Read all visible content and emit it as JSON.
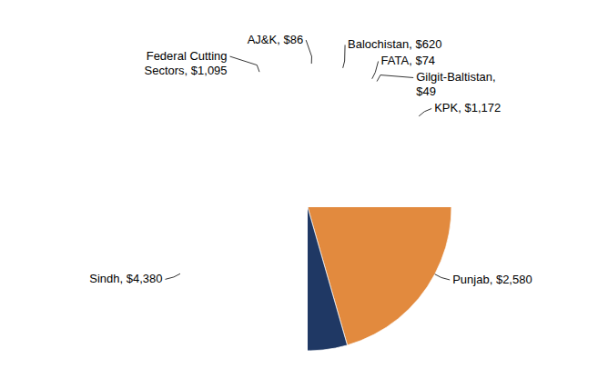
{
  "chart_data": {
    "type": "pie",
    "categories": [
      "AJ&K",
      "Balochistan",
      "FATA",
      "Gilgit-Baltistan",
      "KPK",
      "Punjab",
      "Sindh",
      "Federal Cutting Sectors"
    ],
    "values": [
      86,
      620,
      74,
      49,
      1172,
      2580,
      4380,
      1095
    ],
    "value_labels": [
      "$86",
      "$620",
      "$74",
      "$49",
      "$1,172",
      "$2,580",
      "$4,380",
      "$1,095"
    ],
    "colors": [
      "#4f81bd",
      "#b8433f",
      "#9bbb59",
      "#8064a2",
      "#4bacc6",
      "#e28a3e",
      "#1f3864",
      "#d99594"
    ],
    "data_labels": true
  }
}
